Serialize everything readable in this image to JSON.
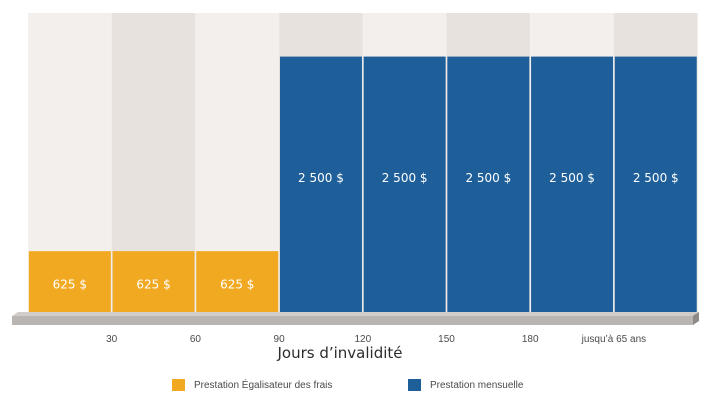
{
  "chart_data": {
    "type": "bar",
    "xlabel": "Jours d’invalidité",
    "x_ticks": [
      "30",
      "60",
      "90",
      "120",
      "150",
      "180",
      "jusqu’à 65 ans"
    ],
    "series": [
      {
        "name": "Prestation Égalisateur des frais",
        "color": "#f2a922",
        "values": [
          625,
          625,
          625,
          null,
          null,
          null,
          null,
          null
        ],
        "labels": [
          "625 $",
          "625 $",
          "625 $",
          "",
          "",
          "",
          "",
          ""
        ]
      },
      {
        "name": "Prestation mensuelle",
        "color": "#1f5f99",
        "values": [
          null,
          null,
          null,
          2500,
          2500,
          2500,
          2500,
          2500
        ],
        "labels": [
          "",
          "",
          "",
          "2 500 $",
          "2 500 $",
          "2 500 $",
          "2 500 $",
          "2 500 $"
        ]
      }
    ],
    "ylim": [
      0,
      2920
    ],
    "grid": false,
    "legend_position": "bottom"
  },
  "colors": {
    "band_light": "#f3efed",
    "band_dark": "#e8e2df",
    "axis_top": "#b9b5b2",
    "axis_side": "#8f8b88",
    "bar_label": "#ffffff",
    "tick_label": "#4a4a4a"
  }
}
